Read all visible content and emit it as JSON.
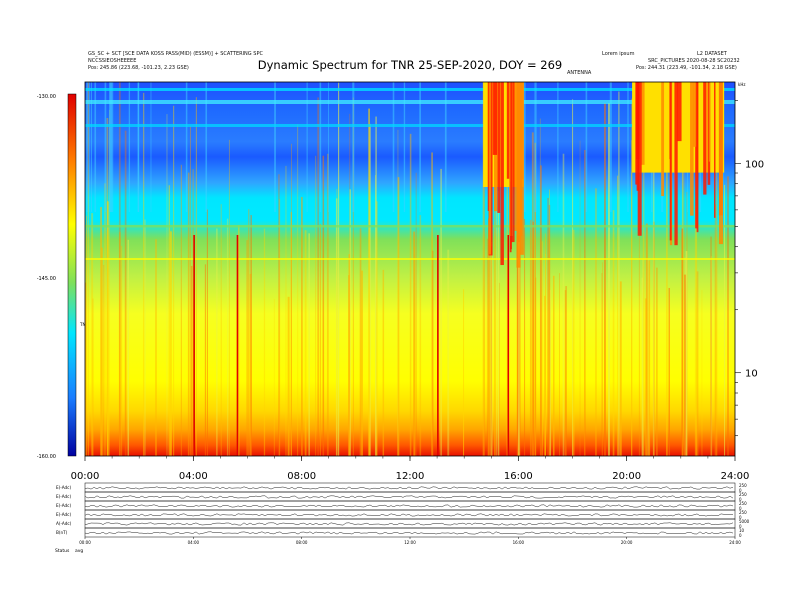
{
  "chart_data": {
    "type": "heatmap",
    "title": "Dynamic Spectrum for TNR 25-SEP-2020, DOY = 269",
    "header_left": [
      "GS_SC + SCT [SCE DATA KOSS PASS(MID) (ESSM)] + SCATTERING SPC",
      "NCCSSIEOSHEEEEE",
      "Pos:   245.86 (223.68, -101.23, 2.23 GSE)"
    ],
    "header_right": [
      "Lorem ipsum",
      "ANTENNA",
      "L2 DATASET",
      "SRC_PICTURES 2020-08-28 SC20232",
      "Pos:   244.31 (223.49, -101.34, 2.18 GSE)"
    ],
    "xlabel": "",
    "x_ticks": [
      "00:00",
      "04:00",
      "08:00",
      "12:00",
      "16:00",
      "20:00",
      "24:00"
    ],
    "x_range_hours": [
      0,
      24
    ],
    "y_right_ticks": [
      "100",
      "10"
    ],
    "y_right_ticks_values": [
      100,
      10
    ],
    "y_right_label": "kHz",
    "y_range_khz": [
      4,
      245
    ],
    "y_scale": "log",
    "colorbar": {
      "ticks": [
        "-130.00",
        "-145.00",
        "-160.00"
      ],
      "range": [
        -160,
        -130
      ],
      "label": "TNR",
      "colors": [
        "#e00000",
        "#ff7a00",
        "#ffff00",
        "#7fe05a",
        "#00e6ff",
        "#1a7cff",
        "#0000a0"
      ]
    },
    "heatmap_regions": [
      {
        "name": "low-frequency band",
        "level": -130,
        "freq_khz": [
          4,
          5.5
        ],
        "hours": [
          0,
          24
        ]
      },
      {
        "name": "quiet background",
        "level": -145,
        "freq_khz": [
          5.5,
          50
        ],
        "hours": [
          0,
          24
        ]
      },
      {
        "name": "upper background",
        "level": -138,
        "freq_khz": [
          50,
          245
        ],
        "hours": [
          0,
          24
        ]
      },
      {
        "name": "type-III burst A",
        "level": -130,
        "freq_khz": [
          30,
          245
        ],
        "hours": [
          14.7,
          16.2
        ]
      },
      {
        "name": "type-III bursts B",
        "level": -130,
        "freq_khz": [
          40,
          245
        ],
        "hours": [
          20.2,
          23.6
        ]
      }
    ],
    "vertical_lines_hours": [
      4.0,
      5.6,
      13.0,
      15.6
    ],
    "panels": [
      {
        "label": "E(-Adc)",
        "right_ticks": [
          "250",
          "0"
        ]
      },
      {
        "label": "E(-Adc)",
        "right_ticks": [
          "250",
          "0"
        ]
      },
      {
        "label": "E(-Adc)",
        "right_ticks": [
          "250",
          "0"
        ]
      },
      {
        "label": "E(-Adc)",
        "right_ticks": [
          "250",
          "0"
        ]
      },
      {
        "label": "A(-Adc)",
        "right_ticks": [
          "5000",
          "0"
        ]
      },
      {
        "label": "B(nT)",
        "right_ticks": [
          "10",
          "0"
        ]
      }
    ],
    "bottom_x_ticks": [
      "00:00",
      "04:00",
      "08:00",
      "12:00",
      "16:00",
      "20:00",
      "24:00"
    ],
    "bottom_labels": [
      "Status",
      "avg"
    ]
  }
}
